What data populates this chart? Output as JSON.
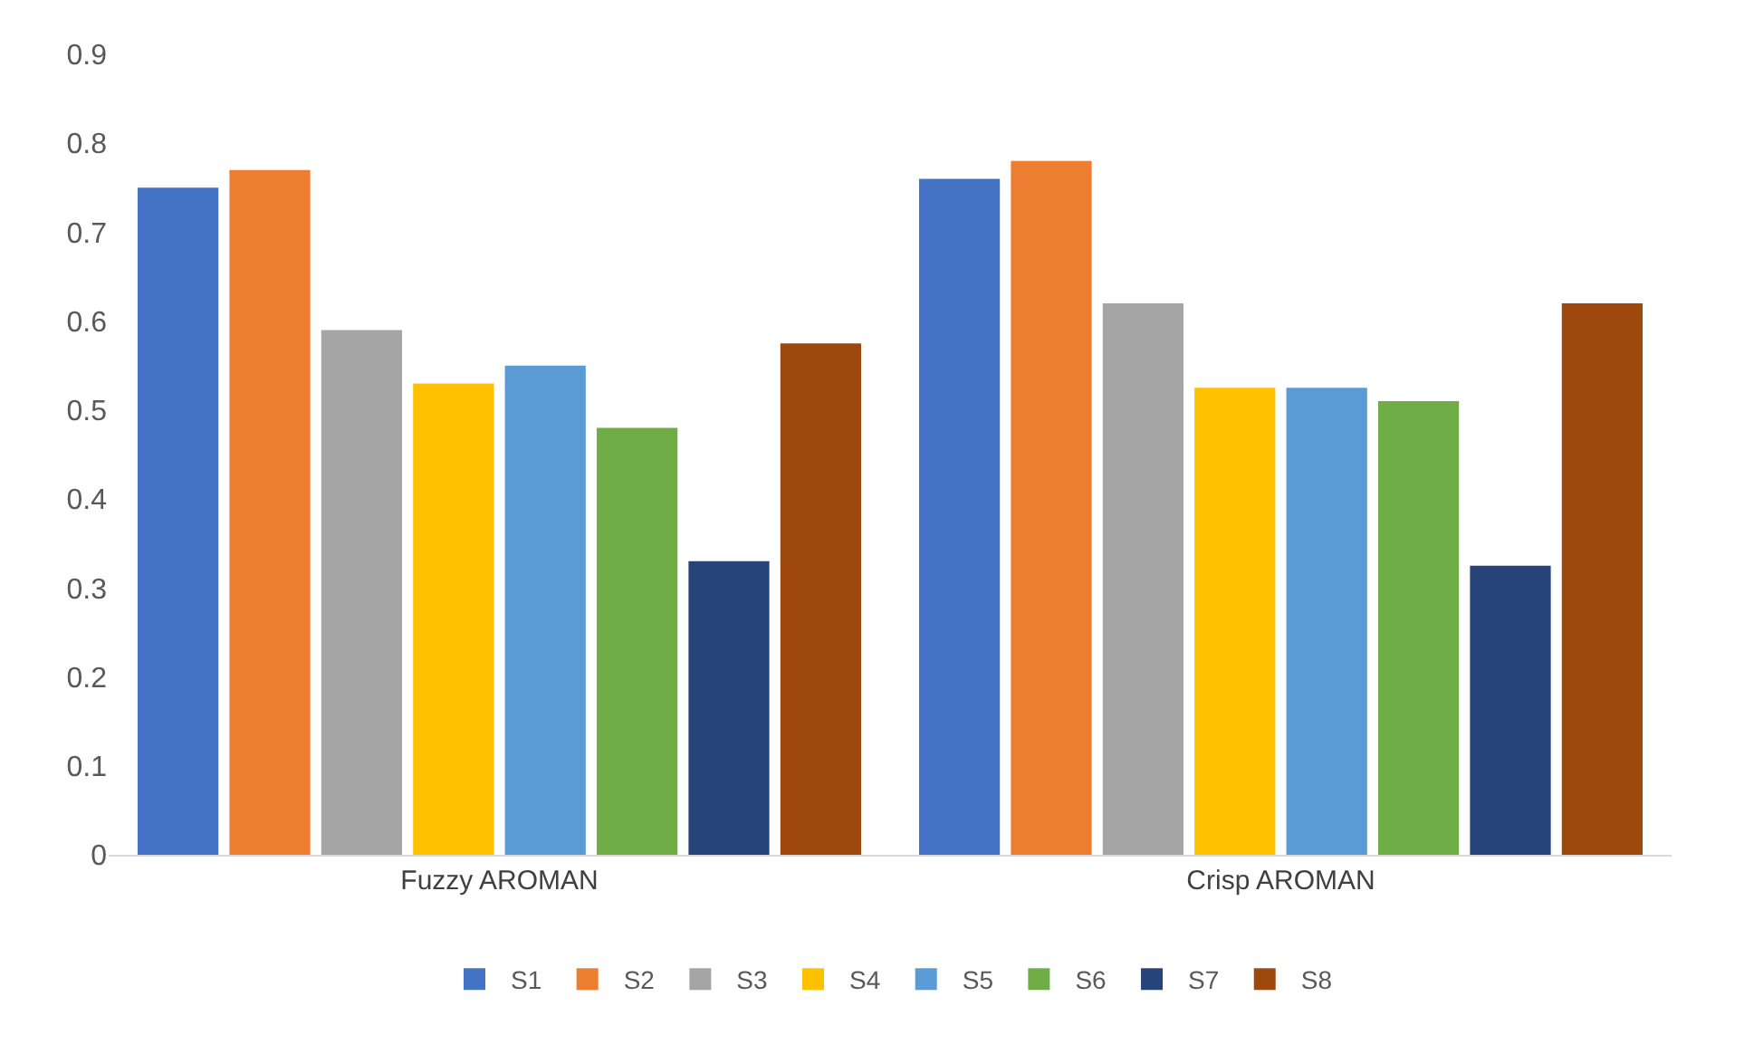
{
  "chart_data": {
    "type": "bar",
    "categories": [
      "Fuzzy AROMAN",
      "Crisp AROMAN"
    ],
    "series": [
      {
        "name": "S1",
        "color": "#4472c4",
        "values": [
          0.75,
          0.76
        ]
      },
      {
        "name": "S2",
        "color": "#ed7d31",
        "values": [
          0.77,
          0.78
        ]
      },
      {
        "name": "S3",
        "color": "#a5a5a5",
        "values": [
          0.59,
          0.62
        ]
      },
      {
        "name": "S4",
        "color": "#ffc000",
        "values": [
          0.53,
          0.525
        ]
      },
      {
        "name": "S5",
        "color": "#5b9bd5",
        "values": [
          0.55,
          0.525
        ]
      },
      {
        "name": "S6",
        "color": "#70ad47",
        "values": [
          0.48,
          0.51
        ]
      },
      {
        "name": "S7",
        "color": "#264478",
        "values": [
          0.33,
          0.325
        ]
      },
      {
        "name": "S8",
        "color": "#9e480e",
        "values": [
          0.575,
          0.62
        ]
      }
    ],
    "ylim": [
      0,
      0.9
    ],
    "yticks": [
      0,
      0.1,
      0.2,
      0.3,
      0.4,
      0.5,
      0.6,
      0.7,
      0.8,
      0.9
    ],
    "legend": "bottom"
  }
}
